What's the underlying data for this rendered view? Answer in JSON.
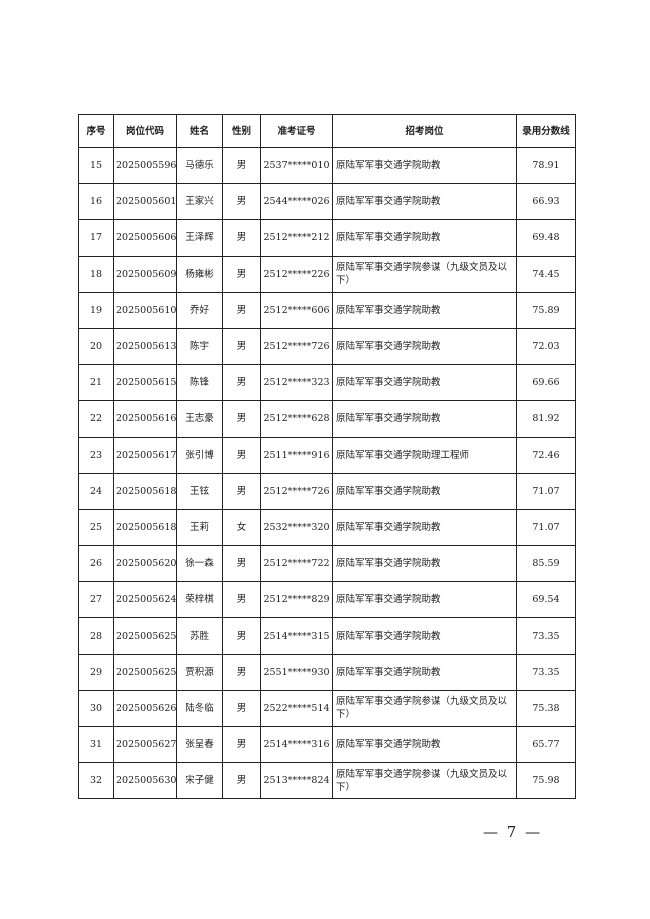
{
  "table": {
    "headers": [
      "序号",
      "岗位代码",
      "姓名",
      "性别",
      "准考证号",
      "招考岗位",
      "录用分数线"
    ],
    "rows": [
      [
        "15",
        "2025005596",
        "马德乐",
        "男",
        "2537*****010",
        "原陆军军事交通学院助教",
        "78.91"
      ],
      [
        "16",
        "2025005601",
        "王家兴",
        "男",
        "2544*****026",
        "原陆军军事交通学院助教",
        "66.93"
      ],
      [
        "17",
        "2025005606",
        "王泽辉",
        "男",
        "2512*****212",
        "原陆军军事交通学院助教",
        "69.48"
      ],
      [
        "18",
        "2025005609",
        "杨雍彬",
        "男",
        "2512*****226",
        "原陆军军事交通学院参谋（九级文员及以下）",
        "74.45"
      ],
      [
        "19",
        "2025005610",
        "乔好",
        "男",
        "2512*****606",
        "原陆军军事交通学院助教",
        "75.89"
      ],
      [
        "20",
        "2025005613",
        "陈宇",
        "男",
        "2512*****726",
        "原陆军军事交通学院助教",
        "72.03"
      ],
      [
        "21",
        "2025005615",
        "陈锋",
        "男",
        "2512*****323",
        "原陆军军事交通学院助教",
        "69.66"
      ],
      [
        "22",
        "2025005616",
        "王志豪",
        "男",
        "2512*****628",
        "原陆军军事交通学院助教",
        "81.92"
      ],
      [
        "23",
        "2025005617",
        "张引博",
        "男",
        "2511*****916",
        "原陆军军事交通学院助理工程师",
        "72.46"
      ],
      [
        "24",
        "2025005618",
        "王铉",
        "男",
        "2512*****726",
        "原陆军军事交通学院助教",
        "71.07"
      ],
      [
        "25",
        "2025005618",
        "王莉",
        "女",
        "2532*****320",
        "原陆军军事交通学院助教",
        "71.07"
      ],
      [
        "26",
        "2025005620",
        "徐一森",
        "男",
        "2512*****722",
        "原陆军军事交通学院助教",
        "85.59"
      ],
      [
        "27",
        "2025005624",
        "荣梓棋",
        "男",
        "2512*****829",
        "原陆军军事交通学院助教",
        "69.54"
      ],
      [
        "28",
        "2025005625",
        "苏胜",
        "男",
        "2514*****315",
        "原陆军军事交通学院助教",
        "73.35"
      ],
      [
        "29",
        "2025005625",
        "贾积源",
        "男",
        "2551*****930",
        "原陆军军事交通学院助教",
        "73.35"
      ],
      [
        "30",
        "2025005626",
        "陆冬临",
        "男",
        "2522*****514",
        "原陆军军事交通学院参谋（九级文员及以下）",
        "75.38"
      ],
      [
        "31",
        "2025005627",
        "张呈春",
        "男",
        "2514*****316",
        "原陆军军事交通学院助教",
        "65.77"
      ],
      [
        "32",
        "2025005630",
        "宋子健",
        "男",
        "2513*****824",
        "原陆军军事交通学院参谋（九级文员及以下）",
        "75.98"
      ]
    ]
  },
  "footer": {
    "page_number": "— 7 —"
  }
}
